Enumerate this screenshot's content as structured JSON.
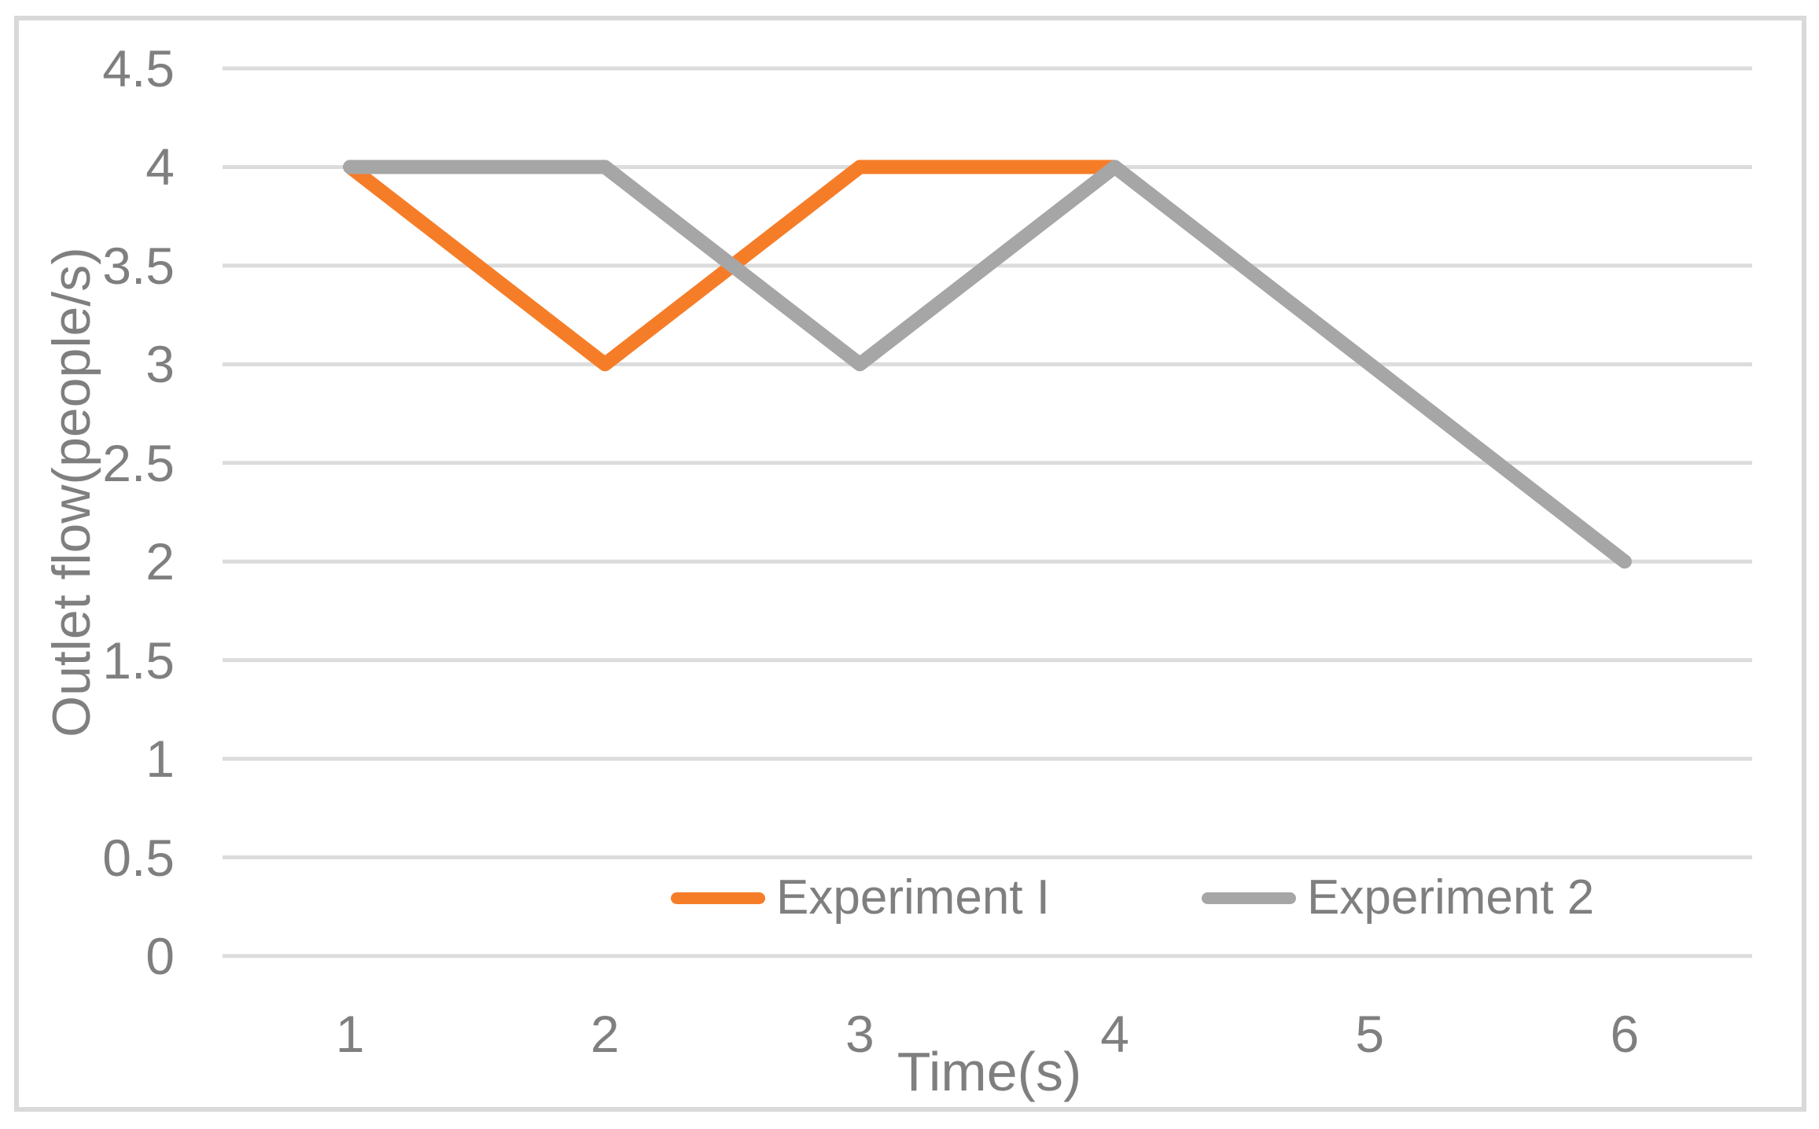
{
  "figure": {
    "background": "#FFFFFF",
    "border_color": "#D9D9D9",
    "text_color": "#7F7F7F",
    "gridline_color": "#DCDCDC"
  },
  "chart_data": {
    "type": "line",
    "title": "",
    "xlabel": "Time(s)",
    "ylabel": "Outlet flow(people/s)",
    "x": [
      1,
      2,
      3,
      4,
      5,
      6
    ],
    "xtick_labels": [
      "1",
      "2",
      "3",
      "4",
      "5",
      "6"
    ],
    "ytick_labels": [
      "4.5",
      "4",
      "3.5",
      "3",
      "2.5",
      "2",
      "1.5",
      "1",
      "0.5",
      "0"
    ],
    "ylim": [
      0,
      4.5
    ],
    "ytick_step": 0.5,
    "grid": true,
    "legend_position": "bottom-inside",
    "series": [
      {
        "name": "Experiment I",
        "color": "#F67D28",
        "values": [
          4,
          3,
          4,
          4,
          null,
          null
        ]
      },
      {
        "name": "Experiment 2",
        "color": "#A6A6A6",
        "values": [
          4,
          4,
          3,
          4,
          3,
          2
        ]
      }
    ]
  }
}
